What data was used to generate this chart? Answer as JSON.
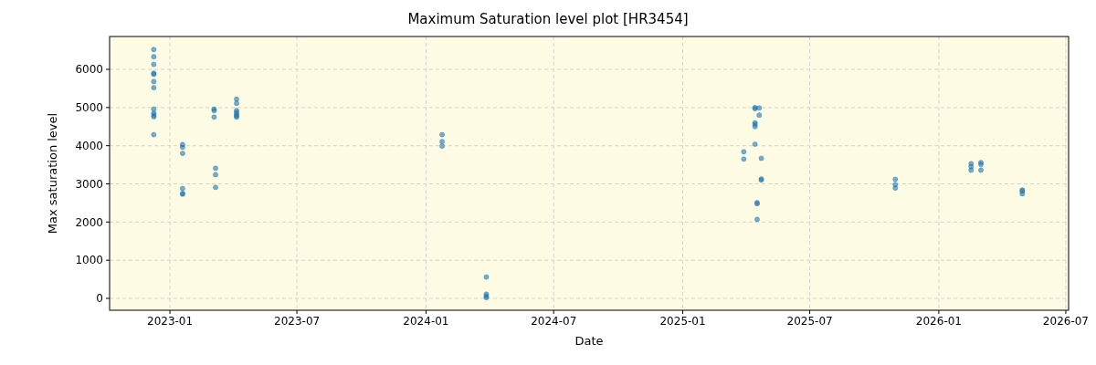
{
  "chart_data": {
    "type": "scatter",
    "title": "Maximum Saturation level plot [HR3454]",
    "xlabel": "Date",
    "ylabel": "Max saturation level",
    "x": [
      "2022-12-09",
      "2022-12-09",
      "2022-12-09",
      "2022-12-09",
      "2022-12-09",
      "2022-12-09",
      "2022-12-09",
      "2022-12-09",
      "2022-12-09",
      "2022-12-09",
      "2022-12-09",
      "2022-12-09",
      "2023-01-19",
      "2023-01-19",
      "2023-01-19",
      "2023-01-19",
      "2023-01-19",
      "2023-01-19",
      "2023-03-05",
      "2023-03-05",
      "2023-03-05",
      "2023-03-07",
      "2023-03-07",
      "2023-03-07",
      "2023-04-06",
      "2023-04-06",
      "2023-04-06",
      "2023-04-06",
      "2023-04-06",
      "2023-04-06",
      "2023-04-06",
      "2024-01-24",
      "2024-01-24",
      "2024-01-24",
      "2024-03-27",
      "2024-03-27",
      "2024-03-27",
      "2024-03-27",
      "2025-03-29",
      "2025-03-29",
      "2025-04-14",
      "2025-04-14",
      "2025-04-14",
      "2025-04-14",
      "2025-04-14",
      "2025-04-14",
      "2025-04-17",
      "2025-04-17",
      "2025-04-17",
      "2025-04-20",
      "2025-04-20",
      "2025-04-23",
      "2025-04-23",
      "2025-04-23",
      "2025-10-31",
      "2025-10-31",
      "2025-10-31",
      "2026-02-16",
      "2026-02-16",
      "2026-02-16",
      "2026-03-02",
      "2026-03-02",
      "2026-03-02",
      "2026-04-30",
      "2026-04-30",
      "2026-04-30"
    ],
    "values": [
      6520,
      6330,
      6130,
      5900,
      5870,
      5680,
      5520,
      4960,
      4850,
      4800,
      4760,
      4290,
      4030,
      3960,
      3800,
      2880,
      2750,
      2730,
      4960,
      4920,
      4750,
      3410,
      3240,
      2910,
      5220,
      5110,
      4920,
      4870,
      4820,
      4780,
      4750,
      4290,
      4110,
      3990,
      560,
      110,
      60,
      20,
      3840,
      3650,
      5000,
      4970,
      4600,
      4560,
      4500,
      4040,
      2510,
      2480,
      2070,
      4990,
      4800,
      3670,
      3130,
      3100,
      3120,
      2980,
      2890,
      3530,
      3450,
      3360,
      3560,
      3510,
      3360,
      2840,
      2810,
      2740
    ],
    "color": "#1f77b4",
    "marker": "circle",
    "grid": true,
    "xlim": [
      "2022-10-07",
      "2026-07-05"
    ],
    "xticks": [
      "2023-01",
      "2023-07",
      "2024-01",
      "2024-07",
      "2025-01",
      "2025-07",
      "2026-01",
      "2026-07"
    ],
    "ylim": [
      -311,
      6861
    ],
    "yticks": [
      0,
      1000,
      2000,
      3000,
      4000,
      5000,
      6000
    ]
  }
}
